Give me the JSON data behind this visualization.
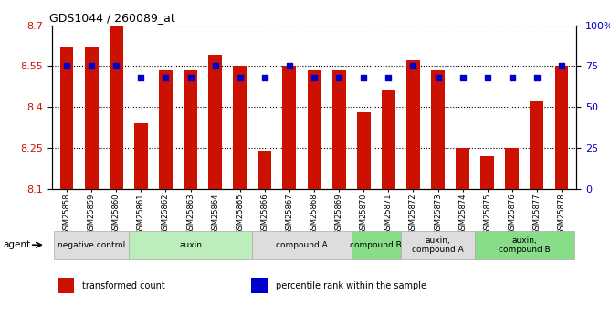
{
  "title": "GDS1044 / 260089_at",
  "samples": [
    "GSM25858",
    "GSM25859",
    "GSM25860",
    "GSM25861",
    "GSM25862",
    "GSM25863",
    "GSM25864",
    "GSM25865",
    "GSM25866",
    "GSM25867",
    "GSM25868",
    "GSM25869",
    "GSM25870",
    "GSM25871",
    "GSM25872",
    "GSM25873",
    "GSM25874",
    "GSM25875",
    "GSM25876",
    "GSM25877",
    "GSM25878"
  ],
  "bar_values": [
    8.62,
    8.62,
    8.7,
    8.34,
    8.535,
    8.535,
    8.59,
    8.55,
    8.24,
    8.55,
    8.535,
    8.535,
    8.38,
    8.46,
    8.57,
    8.535,
    8.25,
    8.22,
    8.25,
    8.42,
    8.55
  ],
  "dot_values": [
    75,
    75,
    75,
    68,
    68,
    68,
    75,
    68,
    68,
    75,
    68,
    68,
    68,
    68,
    75,
    68,
    68,
    68,
    68,
    68,
    75
  ],
  "bar_color": "#cc1100",
  "dot_color": "#0000cc",
  "ylim_left": [
    8.1,
    8.7
  ],
  "ylim_right": [
    0,
    100
  ],
  "yticks_left": [
    8.1,
    8.25,
    8.4,
    8.55,
    8.7
  ],
  "yticks_right": [
    0,
    25,
    50,
    75,
    100
  ],
  "groups": [
    {
      "label": "negative control",
      "start": 0,
      "end": 3,
      "color": "#dddddd"
    },
    {
      "label": "auxin",
      "start": 3,
      "end": 8,
      "color": "#bbeebb"
    },
    {
      "label": "compound A",
      "start": 8,
      "end": 12,
      "color": "#dddddd"
    },
    {
      "label": "compound B",
      "start": 12,
      "end": 14,
      "color": "#88dd88"
    },
    {
      "label": "auxin,\ncompound A",
      "start": 14,
      "end": 17,
      "color": "#dddddd"
    },
    {
      "label": "auxin,\ncompound B",
      "start": 17,
      "end": 21,
      "color": "#88dd88"
    }
  ],
  "legend_items": [
    {
      "label": "transformed count",
      "color": "#cc1100"
    },
    {
      "label": "percentile rank within the sample",
      "color": "#0000cc"
    }
  ],
  "bar_width": 0.55
}
